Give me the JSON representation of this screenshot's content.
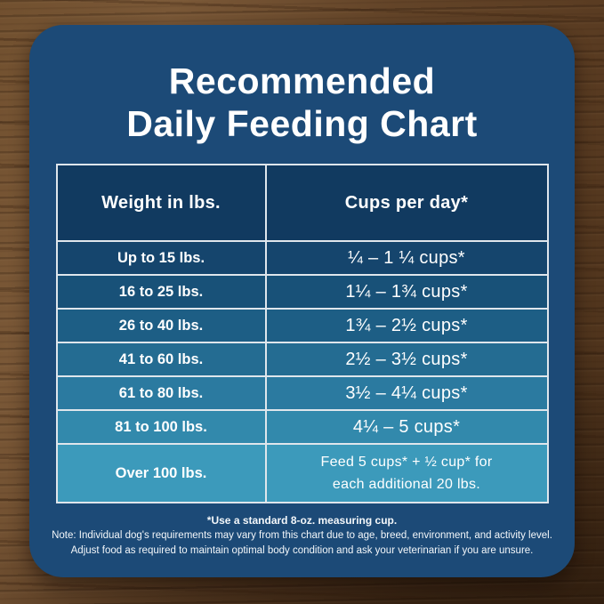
{
  "title": {
    "line1": "Recommended",
    "line2": "Daily Feeding Chart"
  },
  "chart_data": {
    "type": "table",
    "title": "Recommended Daily Feeding Chart",
    "columns": [
      "Weight in lbs.",
      "Cups per day*"
    ],
    "rows": [
      [
        "Up to 15 lbs.",
        "¼ – 1 ¼ cups*"
      ],
      [
        "16 to 25 lbs.",
        "1¼ – 1¾  cups*"
      ],
      [
        "26 to 40 lbs.",
        "1¾ – 2½ cups*"
      ],
      [
        "41 to 60 lbs.",
        "2½ – 3½ cups*"
      ],
      [
        "61 to 80 lbs.",
        "3½ – 4¼ cups*"
      ],
      [
        "81 to 100 lbs.",
        "4¼ – 5 cups*"
      ],
      [
        "Over 100 lbs.",
        "Feed 5 cups* + ½ cup* for\neach additional 20 lbs."
      ]
    ]
  },
  "footnotes": {
    "measuring_cup": "*Use a standard 8-oz. measuring cup.",
    "note_line1": "Note: Individual dog's requirements may vary from this chart due to age, breed, environment, and activity level.",
    "note_line2": "Adjust food as required to maintain optimal body condition and ask your veterinarian if you are unsure."
  },
  "colors": {
    "card_background": "#1c4a77",
    "header_cell_background": "#113a60",
    "table_border": "#dfe6ec",
    "text": "#ffffff",
    "row_backgrounds": [
      "#15456d",
      "#185178",
      "#1d5e85",
      "#246c92",
      "#2b7aa0",
      "#3289ac",
      "#3c9abb"
    ]
  }
}
